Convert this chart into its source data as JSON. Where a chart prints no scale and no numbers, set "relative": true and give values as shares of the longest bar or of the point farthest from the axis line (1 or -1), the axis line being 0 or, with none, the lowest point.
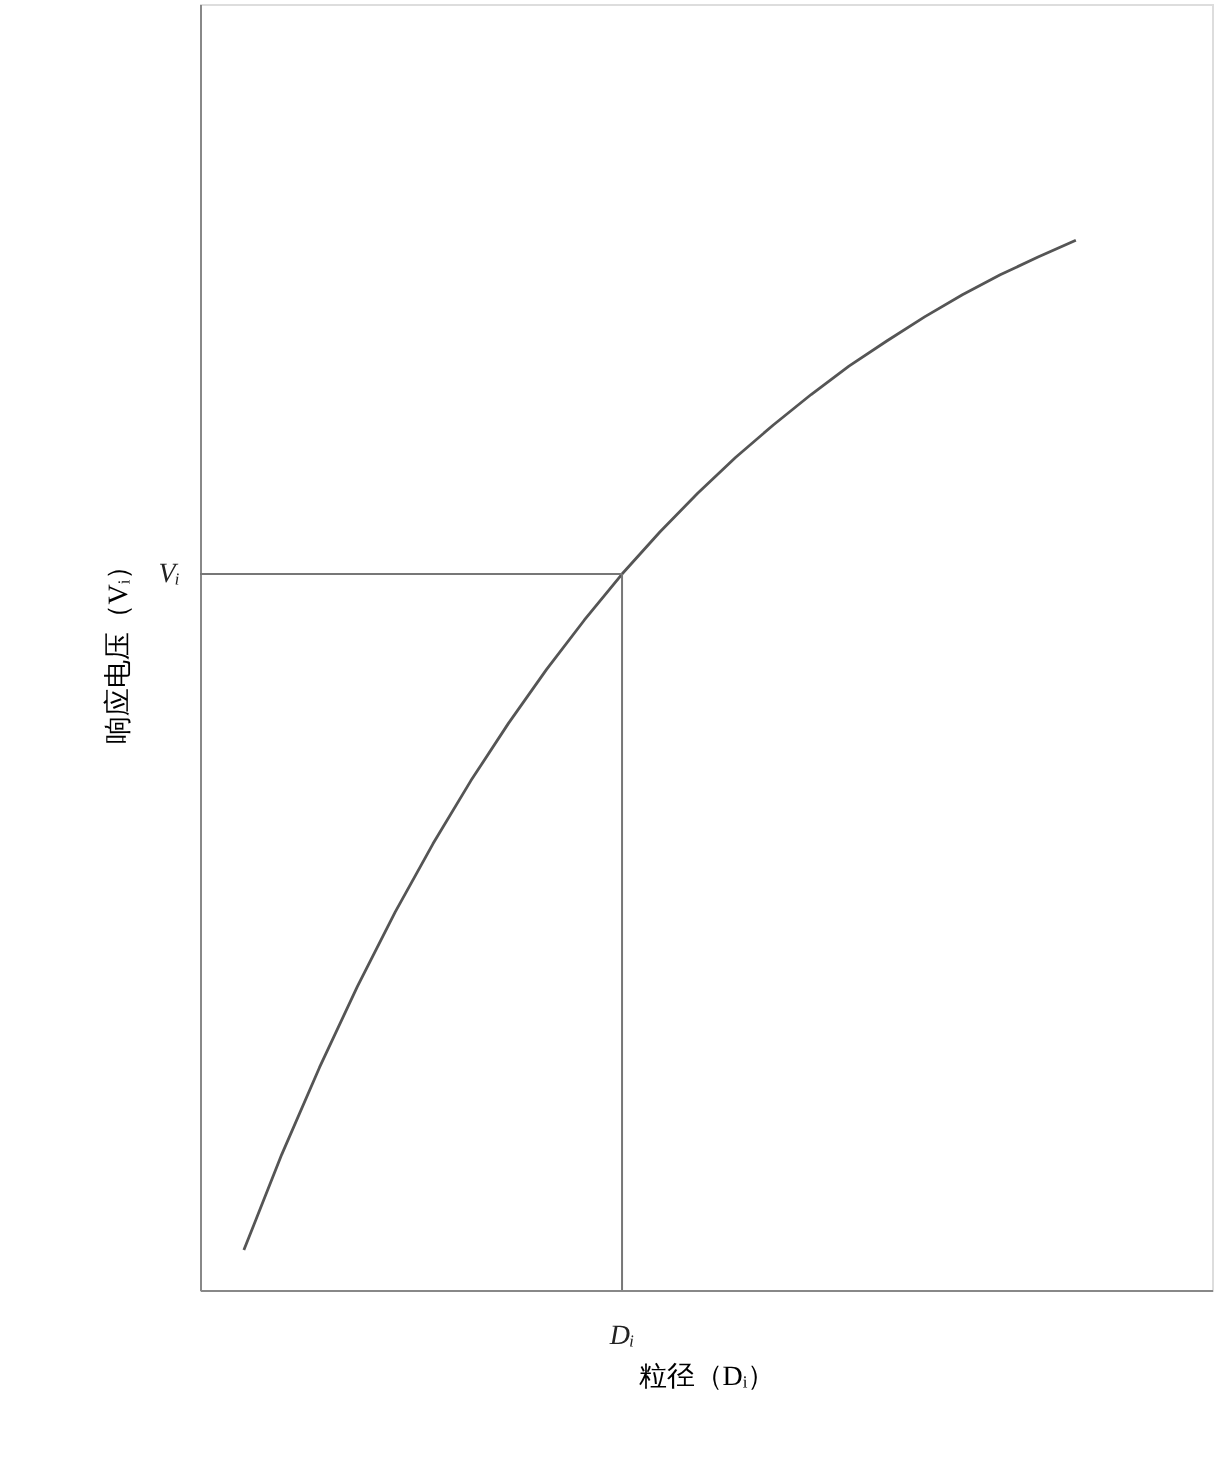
{
  "chart_data": {
    "type": "line",
    "relative": true,
    "xlabel": "粒径（Dᵢ）",
    "ylabel": "响应电压（Vᵢ）",
    "categories": [
      null,
      null,
      null,
      null,
      null,
      null,
      null,
      null,
      null,
      null,
      null,
      null,
      null,
      null,
      null,
      null,
      null,
      null,
      null,
      null,
      null,
      null,
      null
    ],
    "series": [
      {
        "color": "#555555",
        "values": [
          0.038,
          0.129,
          0.212,
          0.289,
          0.36,
          0.425,
          0.485,
          0.54,
          0.591,
          0.638,
          0.682,
          0.722,
          0.759,
          0.793,
          0.824,
          0.853,
          0.88,
          0.904,
          0.927,
          0.948,
          0.967,
          0.984,
          1.0
        ]
      }
    ],
    "ref_lines": [
      {
        "axis": "y",
        "value": 0.682,
        "label": "Vᵢ",
        "color": "#777777"
      }
    ],
    "annotations": [
      "Dᵢ"
    ],
    "marker": "none",
    "line_style": "solid"
  }
}
